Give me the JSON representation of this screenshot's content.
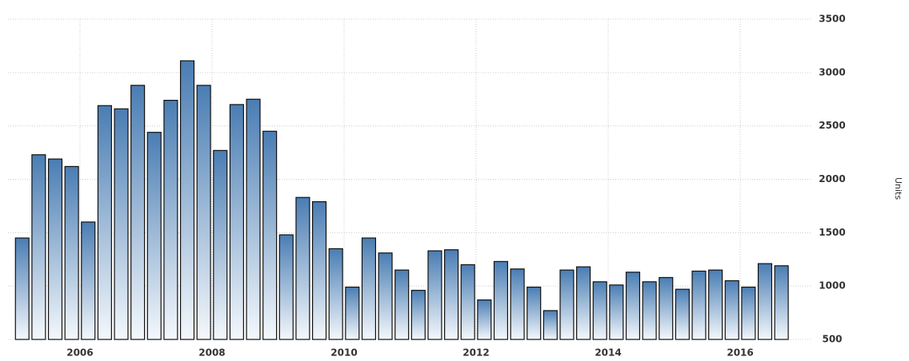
{
  "chart_data": {
    "type": "bar",
    "y_axis_label": "Units",
    "x": [
      2005.125,
      2005.375,
      2005.625,
      2005.875,
      2006.125,
      2006.375,
      2006.625,
      2006.875,
      2007.125,
      2007.375,
      2007.625,
      2007.875,
      2008.125,
      2008.375,
      2008.625,
      2008.875,
      2009.125,
      2009.375,
      2009.625,
      2009.875,
      2010.125,
      2010.375,
      2010.625,
      2010.875,
      2011.125,
      2011.375,
      2011.625,
      2011.875,
      2012.125,
      2012.375,
      2012.625,
      2012.875,
      2013.125,
      2013.375,
      2013.625,
      2013.875,
      2014.125,
      2014.375,
      2014.625,
      2014.875,
      2015.125,
      2015.375,
      2015.625,
      2015.875,
      2016.125,
      2016.375,
      2016.625
    ],
    "values": [
      1450,
      2230,
      2190,
      2120,
      1600,
      2690,
      2660,
      2880,
      2440,
      2740,
      3110,
      2880,
      2270,
      2700,
      2750,
      2450,
      1480,
      1830,
      1790,
      1350,
      990,
      1450,
      1310,
      1150,
      960,
      1330,
      1340,
      1200,
      870,
      1230,
      1160,
      990,
      770,
      1150,
      1180,
      1040,
      1010,
      1130,
      1040,
      1080,
      970,
      1140,
      1150,
      1050,
      990,
      1210,
      1190
    ],
    "color": "#4a7db3",
    "xlim": [
      2004.91,
      2017.09
    ],
    "xticks": [
      2006,
      2008,
      2010,
      2012,
      2014,
      2016
    ],
    "ylim": [
      500,
      3500
    ],
    "yticks": [
      500,
      1000,
      1500,
      2000,
      2500,
      3000,
      3500
    ],
    "grid": true
  }
}
